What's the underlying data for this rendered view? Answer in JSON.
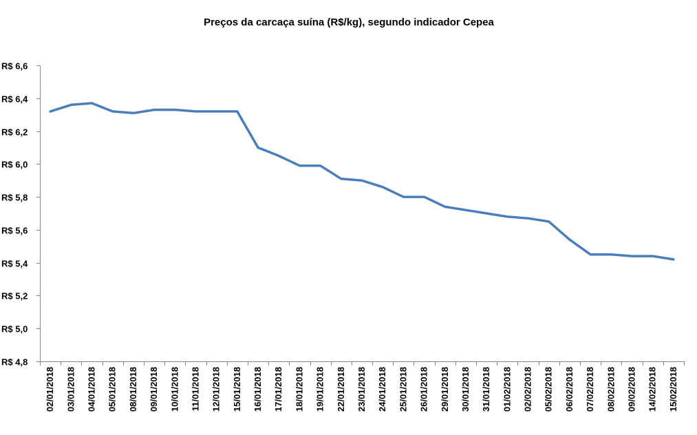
{
  "chart_data": {
    "type": "line",
    "title": "Preços da carcaça suína (R$/kg), segundo indicador Cepea",
    "xlabel": "",
    "ylabel": "",
    "ylim": [
      4.8,
      6.6
    ],
    "y_ticks": [
      4.8,
      5.0,
      5.2,
      5.4,
      5.6,
      5.8,
      6.0,
      6.2,
      6.4,
      6.6
    ],
    "y_tick_labels": [
      "R$ 4,8",
      "R$ 5,0",
      "R$ 5,2",
      "R$ 5,4",
      "R$ 5,6",
      "R$ 5,8",
      "R$ 6,0",
      "R$ 6,2",
      "R$ 6,4",
      "R$ 6,6"
    ],
    "grid": false,
    "legend": "none",
    "categories": [
      "02/01/2018",
      "03/01/2018",
      "04/01/2018",
      "05/01/2018",
      "08/01/2018",
      "09/01/2018",
      "10/01/2018",
      "11/01/2018",
      "12/01/2018",
      "15/01/2018",
      "16/01/2018",
      "17/01/2018",
      "18/01/2018",
      "19/01/2018",
      "22/01/2018",
      "23/01/2018",
      "24/01/2018",
      "25/01/2018",
      "26/01/2018",
      "29/01/2018",
      "30/01/2018",
      "31/01/2018",
      "01/02/2018",
      "02/02/2018",
      "05/02/2018",
      "06/02/2018",
      "07/02/2018",
      "08/02/2018",
      "09/02/2018",
      "14/02/2018",
      "15/02/2018"
    ],
    "series": [
      {
        "name": "Indicador Cepea",
        "color": "#4a7ebb",
        "values": [
          6.32,
          6.36,
          6.37,
          6.32,
          6.31,
          6.33,
          6.33,
          6.32,
          6.32,
          6.32,
          6.1,
          6.05,
          5.99,
          5.99,
          5.91,
          5.9,
          5.86,
          5.8,
          5.8,
          5.74,
          5.72,
          5.7,
          5.68,
          5.67,
          5.65,
          5.54,
          5.45,
          5.45,
          5.44,
          5.44,
          5.42
        ]
      }
    ]
  }
}
